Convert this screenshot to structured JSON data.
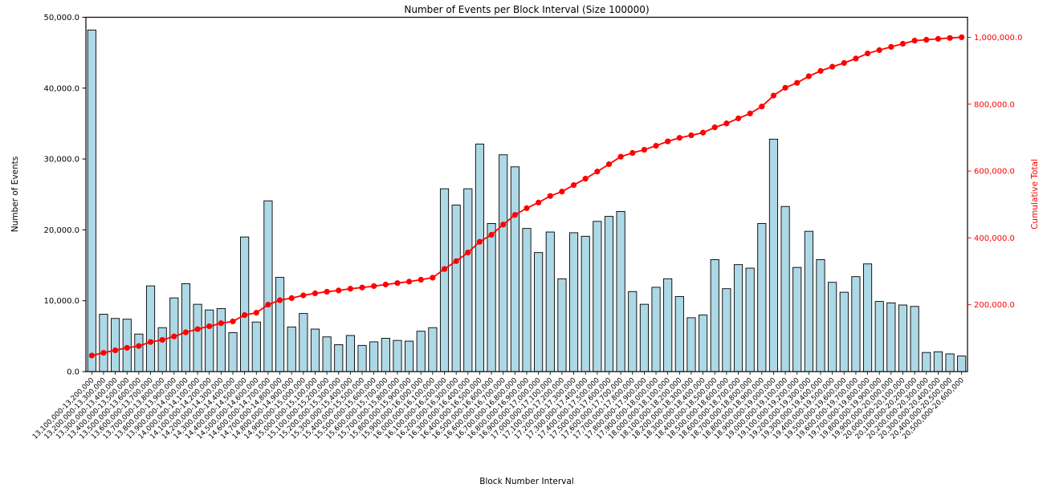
{
  "chart_data": {
    "type": "bar",
    "title": "Number of Events per Block Interval (Size 100000)",
    "xlabel": "Block Number Interval",
    "ylabel": "Number of Events",
    "ylabel_right": "Cumulative Total",
    "grid": false,
    "legend": "none",
    "colors": {
      "bar_fill": "#add8e6",
      "bar_edge": "#000000",
      "line": "#ff0000",
      "axis": "#000000",
      "right_axis_text": "#ff0000"
    },
    "left_axis": {
      "label": "Number of Events",
      "lim": [
        0,
        50000
      ],
      "tick_values": [
        0,
        10000,
        20000,
        30000,
        40000,
        50000
      ],
      "tick_labels": [
        "0.0",
        "10,000.0",
        "20,000.0",
        "30,000.0",
        "40,000.0",
        "50,000.0"
      ]
    },
    "right_axis": {
      "label": "Cumulative Total",
      "lim": [
        0,
        1060000
      ],
      "tick_values": [
        200000,
        400000,
        600000,
        800000,
        1000000
      ],
      "tick_labels": [
        "200,000.0",
        "400,000.0",
        "600,000.0",
        "800,000.0",
        "1,000,000.0"
      ]
    },
    "categories": [
      "13,100,000-13,200,000",
      "13,200,000-13,300,000",
      "13,300,000-13,400,000",
      "13,400,000-13,500,000",
      "13,500,000-13,600,000",
      "13,600,000-13,700,000",
      "13,700,000-13,800,000",
      "13,800,000-13,900,000",
      "13,900,000-14,000,000",
      "14,000,000-14,100,000",
      "14,100,000-14,200,000",
      "14,200,000-14,300,000",
      "14,300,000-14,400,000",
      "14,400,000-14,500,000",
      "14,500,000-14,600,000",
      "14,600,000-14,700,000",
      "14,700,000-14,800,000",
      "14,800,000-14,900,000",
      "14,900,000-15,000,000",
      "15,000,000-15,100,000",
      "15,100,000-15,200,000",
      "15,200,000-15,300,000",
      "15,300,000-15,400,000",
      "15,400,000-15,500,000",
      "15,500,000-15,600,000",
      "15,600,000-15,700,000",
      "15,700,000-15,800,000",
      "15,800,000-15,900,000",
      "15,900,000-16,000,000",
      "16,000,000-16,100,000",
      "16,100,000-16,200,000",
      "16,200,000-16,300,000",
      "16,300,000-16,400,000",
      "16,400,000-16,500,000",
      "16,500,000-16,600,000",
      "16,600,000-16,700,000",
      "16,700,000-16,800,000",
      "16,800,000-16,900,000",
      "16,900,000-17,000,000",
      "17,000,000-17,100,000",
      "17,100,000-17,200,000",
      "17,200,000-17,300,000",
      "17,300,000-17,400,000",
      "17,400,000-17,500,000",
      "17,500,000-17,600,000",
      "17,600,000-17,700,000",
      "17,700,000-17,800,000",
      "17,800,000-17,900,000",
      "17,900,000-18,000,000",
      "18,000,000-18,100,000",
      "18,100,000-18,200,000",
      "18,200,000-18,300,000",
      "18,300,000-18,400,000",
      "18,400,000-18,500,000",
      "18,500,000-18,600,000",
      "18,600,000-18,700,000",
      "18,700,000-18,800,000",
      "18,800,000-18,900,000",
      "18,900,000-19,000,000",
      "19,000,000-19,100,000",
      "19,100,000-19,200,000",
      "19,200,000-19,300,000",
      "19,300,000-19,400,000",
      "19,400,000-19,500,000",
      "19,500,000-19,600,000",
      "19,600,000-19,700,000",
      "19,700,000-19,800,000",
      "19,800,000-19,900,000",
      "19,900,000-20,000,000",
      "20,000,000-20,100,000",
      "20,100,000-20,200,000",
      "20,200,000-20,300,000",
      "20,300,000-20,400,000",
      "20,400,000-20,500,000",
      "20,500,000-20,600,000"
    ],
    "series": [
      {
        "name": "Number of Events",
        "type": "bar",
        "axis": "left",
        "color": "#add8e6",
        "edge_color": "#000000",
        "values": [
          48200,
          8100,
          7500,
          7400,
          5300,
          12100,
          6200,
          10400,
          12400,
          9500,
          8700,
          8900,
          5500,
          19000,
          7000,
          24100,
          13300,
          6300,
          8200,
          6000,
          4900,
          3800,
          5100,
          3700,
          4200,
          4700,
          4400,
          4300,
          5700,
          6200,
          25800,
          23500,
          25800,
          32100,
          20900,
          30600,
          28900,
          20200,
          16800,
          19700,
          13100,
          19600,
          19100,
          21200,
          21900,
          22600,
          11300,
          9500,
          11900,
          13100,
          10600,
          7600,
          8000,
          15800,
          11700,
          15100,
          14600,
          20900,
          32800,
          23300,
          14700,
          19800,
          15800,
          12600,
          11200,
          13400,
          15200,
          9900,
          9700,
          9400,
          9200,
          2700,
          2800,
          2500,
          2200
        ]
      },
      {
        "name": "Cumulative Total",
        "type": "line",
        "axis": "right",
        "color": "#ff0000",
        "marker": "circle",
        "values": [
          48200,
          56300,
          63800,
          71200,
          76500,
          88600,
          94800,
          105200,
          117600,
          127100,
          135800,
          144700,
          150200,
          169200,
          176200,
          200300,
          213600,
          219900,
          228100,
          234100,
          239000,
          242800,
          247900,
          251600,
          255800,
          260500,
          264900,
          269200,
          274900,
          281100,
          306900,
          330400,
          356200,
          388300,
          409200,
          439800,
          468700,
          488900,
          505700,
          525400,
          538500,
          558100,
          577200,
          598400,
          620300,
          642900,
          654200,
          663700,
          675600,
          688700,
          699300,
          706900,
          714900,
          730700,
          742400,
          757500,
          772100,
          793000,
          825800,
          849100,
          863800,
          883600,
          899400,
          912000,
          923200,
          936600,
          951800,
          961700,
          971400,
          980800,
          990000,
          992700,
          995500,
          998000,
          1000200
        ]
      }
    ]
  }
}
